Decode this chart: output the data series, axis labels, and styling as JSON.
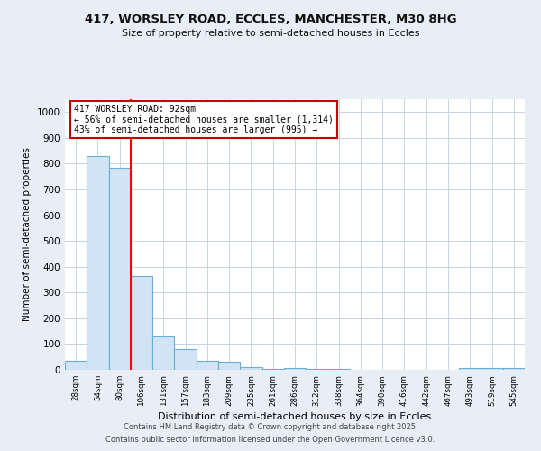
{
  "title_line1": "417, WORSLEY ROAD, ECCLES, MANCHESTER, M30 8HG",
  "title_line2": "Size of property relative to semi-detached houses in Eccles",
  "xlabel": "Distribution of semi-detached houses by size in Eccles",
  "ylabel": "Number of semi-detached properties",
  "bar_labels": [
    "28sqm",
    "54sqm",
    "80sqm",
    "106sqm",
    "131sqm",
    "157sqm",
    "183sqm",
    "209sqm",
    "235sqm",
    "261sqm",
    "286sqm",
    "312sqm",
    "338sqm",
    "364sqm",
    "390sqm",
    "416sqm",
    "442sqm",
    "467sqm",
    "493sqm",
    "519sqm",
    "545sqm"
  ],
  "bar_heights": [
    35,
    830,
    785,
    365,
    130,
    80,
    35,
    30,
    10,
    5,
    8,
    4,
    2,
    1,
    0,
    0,
    0,
    0,
    8,
    8,
    8
  ],
  "bar_color": "#d0e4f5",
  "bar_edge_color": "#6aaed6",
  "red_line_x": 2.5,
  "annotation_title": "417 WORSLEY ROAD: 92sqm",
  "annotation_line2": "← 56% of semi-detached houses are smaller (1,314)",
  "annotation_line3": "43% of semi-detached houses are larger (995) →",
  "annotation_box_facecolor": "#ffffff",
  "annotation_box_edgecolor": "#cc0000",
  "ylim": [
    0,
    1050
  ],
  "yticks": [
    0,
    100,
    200,
    300,
    400,
    500,
    600,
    700,
    800,
    900,
    1000
  ],
  "footer_line1": "Contains HM Land Registry data © Crown copyright and database right 2025.",
  "footer_line2": "Contains public sector information licensed under the Open Government Licence v3.0.",
  "background_color": "#e8eef5",
  "plot_bg_color": "#ffffff",
  "grid_color": "#c8d4e0"
}
